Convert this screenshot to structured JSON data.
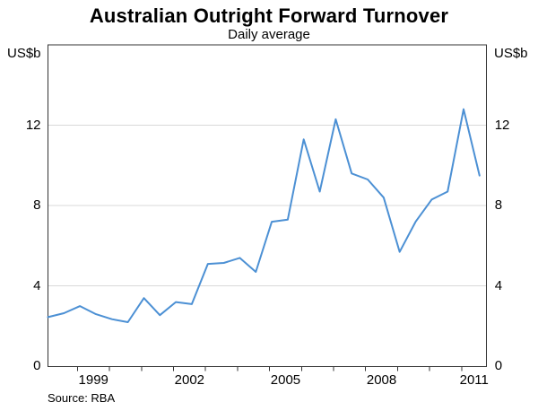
{
  "page": {
    "background": "#ffffff"
  },
  "header": {
    "title": "Australian Outright Forward Turnover",
    "subtitle": "Daily average"
  },
  "axes": {
    "left_unit": "US$b",
    "right_unit": "US$b"
  },
  "footer": {
    "source": "Source: RBA"
  },
  "colors": {
    "line": "#4C90D4",
    "grid": "#D9D9D9",
    "frame": "#333333",
    "text": "#000000"
  },
  "chart_data": {
    "type": "line",
    "title": "Australian Outright Forward Turnover",
    "subtitle": "Daily average",
    "ylabel": "US$b",
    "xlabel": "",
    "legend": false,
    "grid": true,
    "y_axis": {
      "range": [
        0,
        16
      ],
      "ticks": [
        0,
        4,
        8,
        12
      ],
      "unit": "US$b",
      "labels_on_both_sides": true
    },
    "x_axis": {
      "range_years": [
        1998.08,
        2011.78
      ],
      "year_ticks": [
        1999,
        2000,
        2001,
        2002,
        2003,
        2004,
        2005,
        2006,
        2007,
        2008,
        2009,
        2010,
        2011
      ],
      "labeled_years": [
        "1999",
        "2002",
        "2005",
        "2008",
        "2011"
      ],
      "first_point_year": 1998.08,
      "last_point_year": 2011.56
    },
    "series": [
      {
        "name": "Australian outright forward turnover, daily average",
        "color": "#4C90D4",
        "periods": [
          "1998 H1",
          "1998 H2",
          "1999 H1",
          "1999 H2",
          "2000 H1",
          "2000 H2",
          "2001 H1",
          "2001 H2",
          "2002 H1",
          "2002 H2",
          "2003 H1",
          "2003 H2",
          "2004 H1",
          "2004 H2",
          "2005 H1",
          "2005 H2",
          "2006 H1",
          "2006 H2",
          "2007 H1",
          "2007 H2",
          "2008 H1",
          "2008 H2",
          "2009 H1",
          "2009 H2",
          "2010 H1",
          "2010 H2",
          "2011 H1",
          "2011 H2"
        ],
        "values": [
          2.45,
          2.65,
          3.0,
          2.6,
          2.35,
          2.2,
          3.4,
          2.55,
          3.2,
          3.1,
          5.1,
          5.15,
          5.4,
          4.7,
          7.2,
          7.3,
          11.3,
          8.7,
          12.3,
          9.6,
          9.3,
          8.4,
          5.7,
          7.2,
          8.3,
          8.7,
          12.8,
          9.5
        ]
      }
    ]
  }
}
